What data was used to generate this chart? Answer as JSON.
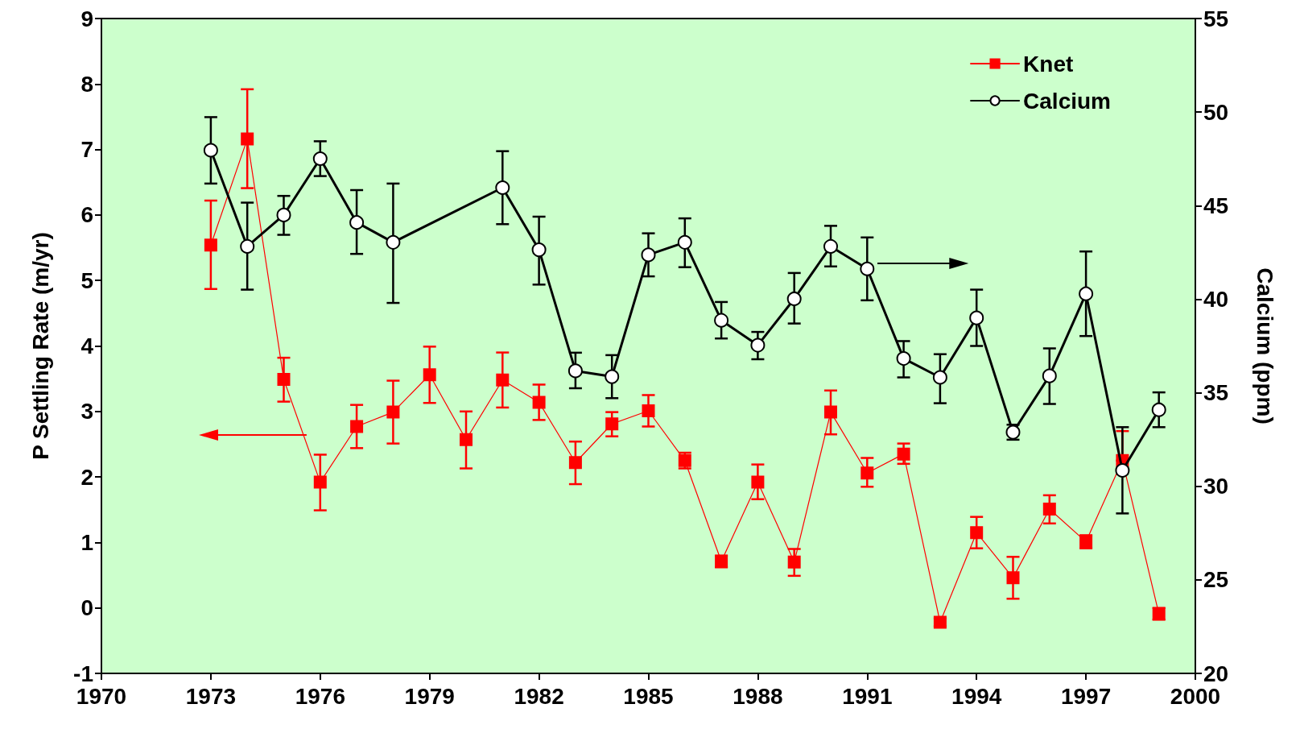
{
  "chart_data": {
    "type": "line",
    "ylabel": "P Settling Rate (m/yr)",
    "y2label": "Calcium (ppm)",
    "xlim": [
      1970,
      2000
    ],
    "xticks": [
      1970,
      1973,
      1976,
      1979,
      1982,
      1985,
      1988,
      1991,
      1994,
      1997,
      2000
    ],
    "ylim": [
      -1,
      9
    ],
    "yticks": [
      -1,
      0,
      1,
      2,
      3,
      4,
      5,
      6,
      7,
      8,
      9
    ],
    "y2lim": [
      20,
      55
    ],
    "y2ticks": [
      20,
      25,
      30,
      35,
      40,
      45,
      50,
      55
    ],
    "grid": false,
    "legend": "top right",
    "line_style": "solid",
    "series": [
      {
        "name": "Knet",
        "color": "#ff0000",
        "marker": "square",
        "x": [
          1973,
          1974,
          1975,
          1976,
          1977,
          1978,
          1979,
          1980,
          1981,
          1982,
          1983,
          1984,
          1985,
          1986,
          1987,
          1988,
          1989,
          1990,
          1991,
          1992,
          1993,
          1994,
          1995,
          1996,
          1997,
          1998,
          1999
        ],
        "values": [
          5.54,
          7.16,
          3.49,
          1.92,
          2.77,
          2.99,
          3.56,
          2.57,
          3.48,
          3.14,
          2.22,
          2.81,
          3.01,
          2.25,
          0.71,
          1.92,
          0.7,
          2.99,
          2.06,
          2.35,
          -0.22,
          1.15,
          0.46,
          1.51,
          1.01,
          2.25,
          -0.09
        ],
        "errors": [
          [
            4.87,
            6.22
          ],
          [
            6.41,
            7.92
          ],
          [
            3.15,
            3.82
          ],
          [
            1.49,
            2.34
          ],
          [
            2.44,
            3.1
          ],
          [
            2.51,
            3.47
          ],
          [
            3.13,
            3.99
          ],
          [
            2.13,
            3.0
          ],
          [
            3.06,
            3.9
          ],
          [
            2.87,
            3.41
          ],
          [
            1.89,
            2.54
          ],
          [
            2.62,
            2.99
          ],
          [
            2.77,
            3.25
          ],
          [
            2.13,
            2.37
          ],
          [
            0.62,
            0.8
          ],
          [
            1.66,
            2.19
          ],
          [
            0.49,
            0.9
          ],
          [
            2.65,
            3.32
          ],
          [
            1.85,
            2.29
          ],
          [
            2.2,
            2.51
          ],
          [
            -0.28,
            -0.16
          ],
          [
            0.91,
            1.39
          ],
          [
            0.14,
            0.78
          ],
          [
            1.29,
            1.72
          ],
          [
            0.91,
            1.11
          ],
          [
            2.25,
            2.7
          ],
          [
            -0.18,
            0.0
          ]
        ]
      },
      {
        "name": "Calcium",
        "color": "#000000",
        "marker": "circle",
        "axis": "y2",
        "x": [
          1973,
          1974,
          1975,
          1976,
          1977,
          1978,
          1981,
          1982,
          1983,
          1984,
          1985,
          1986,
          1987,
          1988,
          1989,
          1990,
          1991,
          1992,
          1993,
          1994,
          1995,
          1996,
          1997,
          1998,
          1999
        ],
        "values": [
          47.96,
          42.82,
          44.5,
          47.51,
          44.1,
          43.04,
          45.96,
          42.64,
          36.17,
          35.86,
          42.37,
          43.04,
          38.87,
          37.54,
          40.02,
          42.82,
          41.62,
          36.83,
          35.82,
          39.0,
          32.89,
          35.9,
          40.29,
          30.85,
          34.09
        ],
        "errors": [
          [
            46.18,
            49.73
          ],
          [
            40.51,
            45.16
          ],
          [
            43.44,
            45.52
          ],
          [
            46.58,
            48.44
          ],
          [
            42.42,
            45.83
          ],
          [
            39.8,
            46.18
          ],
          [
            44.01,
            47.91
          ],
          [
            40.78,
            44.41
          ],
          [
            35.24,
            37.14
          ],
          [
            34.71,
            37.01
          ],
          [
            41.22,
            43.52
          ],
          [
            41.71,
            44.32
          ],
          [
            37.9,
            39.85
          ],
          [
            36.79,
            38.25
          ],
          [
            38.7,
            41.4
          ],
          [
            41.75,
            43.92
          ],
          [
            39.94,
            43.3
          ],
          [
            35.82,
            37.76
          ],
          [
            34.44,
            37.06
          ],
          [
            37.5,
            40.51
          ],
          [
            32.49,
            33.29
          ],
          [
            34.4,
            37.37
          ],
          [
            38.03,
            42.55
          ],
          [
            28.55,
            33.16
          ],
          [
            33.16,
            35.02
          ]
        ]
      }
    ]
  }
}
